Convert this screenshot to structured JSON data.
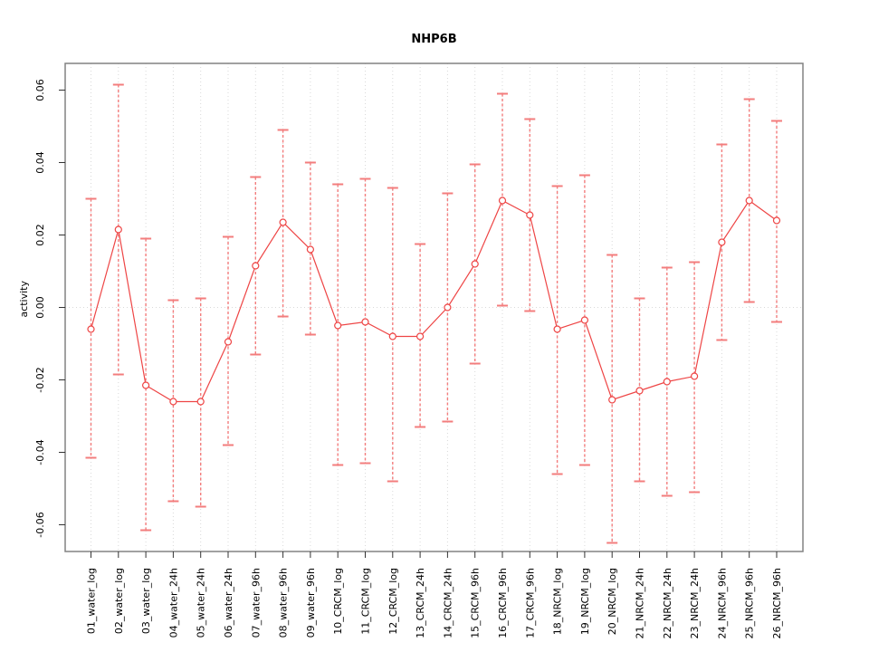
{
  "chart_data": {
    "type": "line",
    "title": "NHP6B",
    "ylabel": "activity",
    "xlabel": "",
    "legend": "none",
    "grid": "dotted vertical gridline at each category; dotted horizontal line at y=0",
    "ylim": [
      -0.07,
      0.068
    ],
    "yticks": [
      -0.06,
      -0.04,
      -0.02,
      0.0,
      0.02,
      0.04,
      0.06
    ],
    "ytick_labels": [
      "-0.06",
      "-0.04",
      "-0.02",
      "0.00",
      "0.02",
      "0.04",
      "0.06"
    ],
    "marker": "open-circle",
    "error_bars": "vertical with end caps, dashed red-pink",
    "categories": [
      "01_water_log",
      "02_water_log",
      "03_water_log",
      "04_water_24h",
      "05_water_24h",
      "06_water_24h",
      "07_water_96h",
      "08_water_96h",
      "09_water_96h",
      "10_CRCM_log",
      "11_CRCM_log",
      "12_CRCM_log",
      "13_CRCM_24h",
      "14_CRCM_24h",
      "15_CRCM_96h",
      "16_CRCM_96h",
      "17_CRCM_96h",
      "18_NRCM_log",
      "19_NRCM_log",
      "20_NRCM_log",
      "21_NRCM_24h",
      "22_NRCM_24h",
      "23_NRCM_24h",
      "24_NRCM_96h",
      "25_NRCM_96h",
      "26_NRCM_96h"
    ],
    "values": [
      -0.006,
      0.0215,
      -0.0215,
      -0.026,
      -0.026,
      -0.0095,
      0.0115,
      0.0235,
      0.016,
      -0.005,
      -0.004,
      -0.008,
      -0.008,
      0.0,
      0.012,
      0.0295,
      0.0255,
      -0.006,
      -0.0035,
      -0.0255,
      -0.023,
      -0.0205,
      -0.019,
      0.018,
      0.0295,
      0.024
    ],
    "ci_low": [
      -0.0415,
      -0.0185,
      -0.0615,
      -0.0535,
      -0.055,
      -0.038,
      -0.013,
      -0.0025,
      -0.0075,
      -0.0435,
      -0.043,
      -0.048,
      -0.033,
      -0.0315,
      -0.0155,
      0.0005,
      -0.001,
      -0.046,
      -0.0435,
      -0.065,
      -0.048,
      -0.052,
      -0.051,
      -0.009,
      0.0015,
      -0.004
    ],
    "ci_high": [
      0.03,
      0.0615,
      0.019,
      0.002,
      0.0025,
      0.0195,
      0.036,
      0.049,
      0.04,
      0.034,
      0.0355,
      0.033,
      0.0175,
      0.0315,
      0.0395,
      0.059,
      0.052,
      0.0335,
      0.0365,
      0.0145,
      0.0025,
      0.011,
      0.0125,
      0.045,
      0.0575,
      0.0515
    ],
    "colors": {
      "series_line": "#ee4545",
      "marker_stroke": "#ee4545",
      "error_bar": "#f37d7d",
      "grid": "#d9d9d9",
      "box_border": "#828282",
      "tick": "#333333",
      "text": "#000000",
      "background": "#ffffff"
    }
  }
}
